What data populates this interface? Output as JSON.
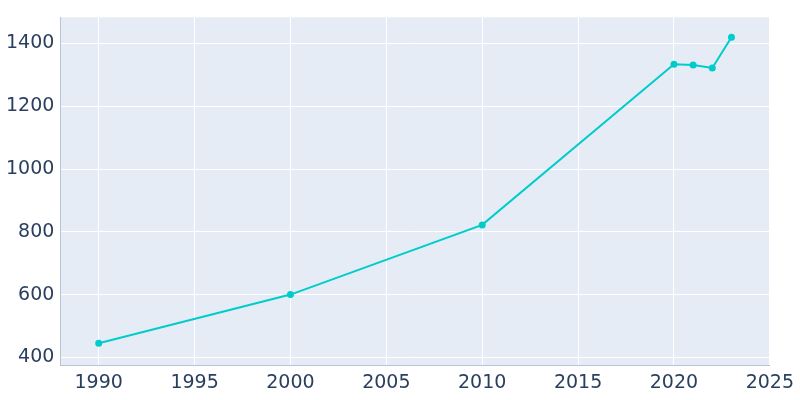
{
  "chart_data": {
    "type": "line",
    "x": [
      1990,
      2000,
      2010,
      2020,
      2021,
      2022,
      2023
    ],
    "values": [
      445,
      600,
      822,
      1334,
      1331,
      1322,
      1420
    ],
    "color": "#00cccc",
    "marker": "circle",
    "xlim": [
      1988,
      2025
    ],
    "xticks": [
      1990,
      1995,
      2000,
      2005,
      2010,
      2015,
      2020,
      2025
    ],
    "ylim": [
      375,
      1483
    ],
    "yticks": [
      400,
      600,
      800,
      1000,
      1200,
      1400
    ],
    "grid": true
  }
}
